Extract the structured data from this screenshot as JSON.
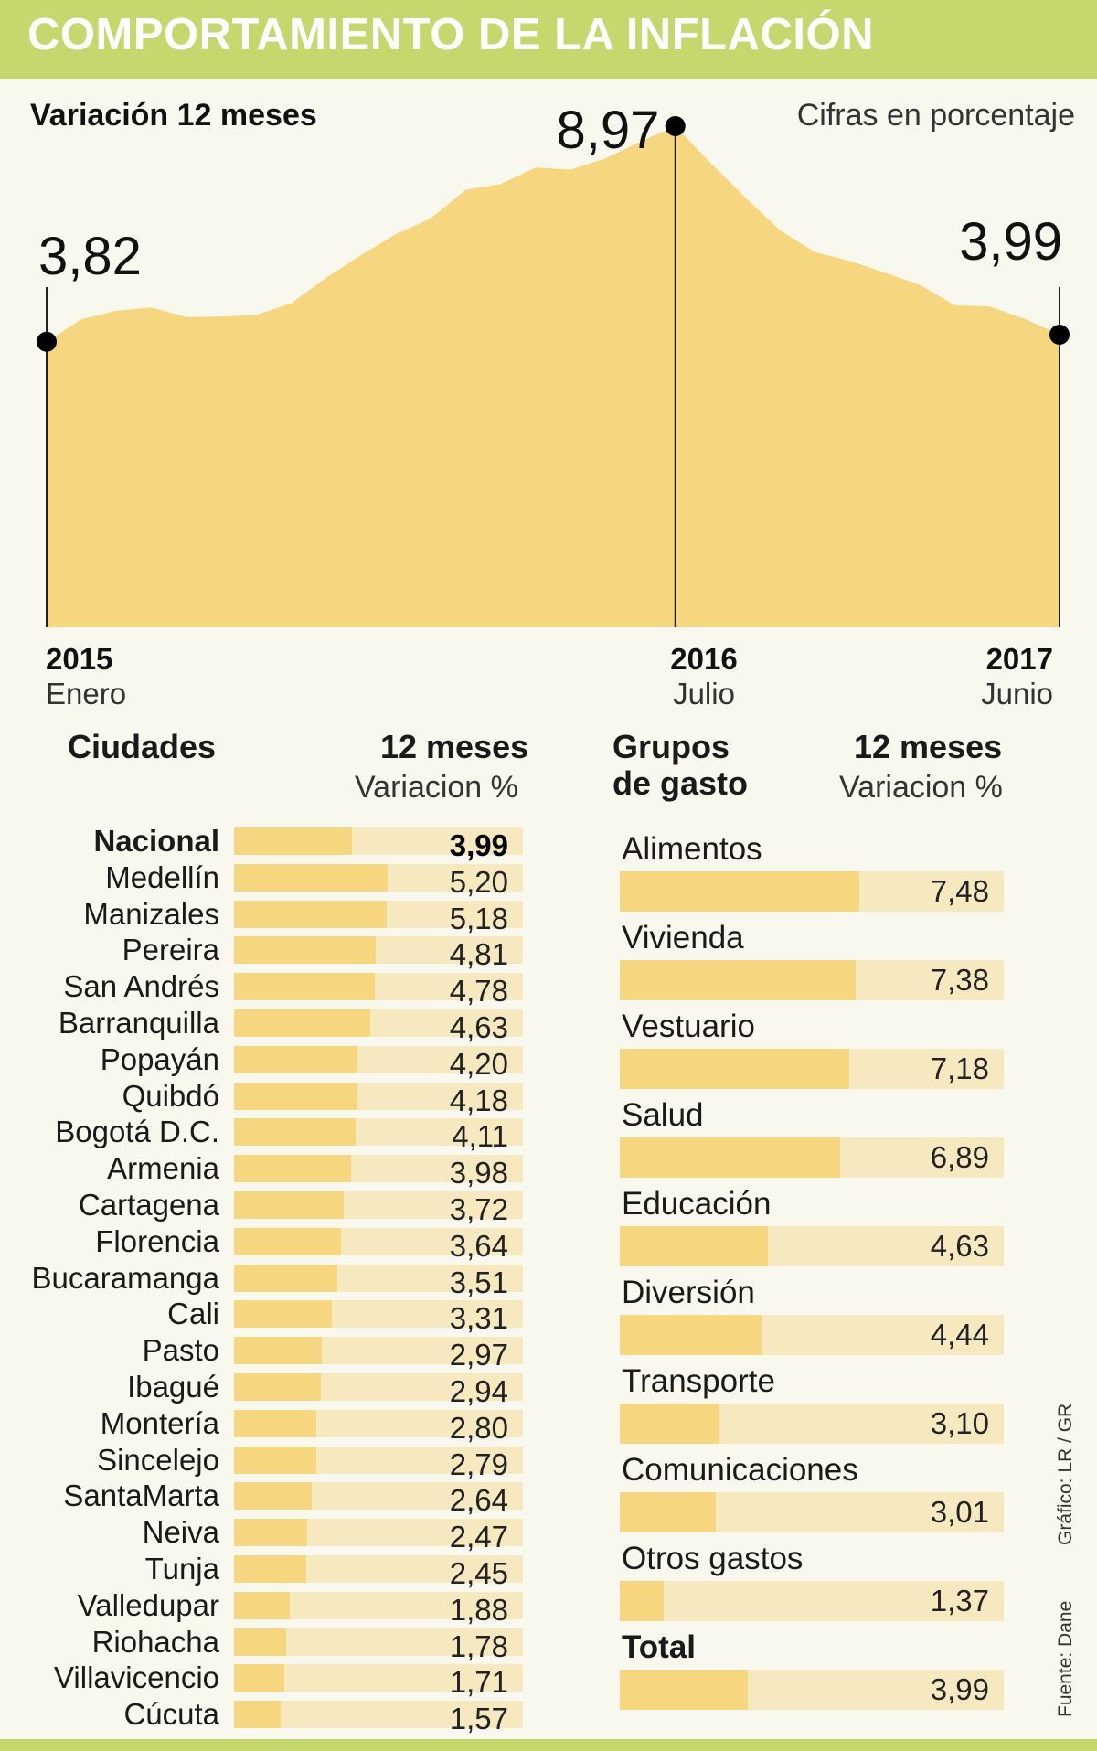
{
  "title": "COMPORTAMIENTO DE LA INFLACIÓN",
  "chart_data": [
    {
      "type": "area",
      "title": "Variación 12 meses",
      "subtitle": "Cifras en porcentaje",
      "color": "#f6d67e",
      "x": [
        "2015-01",
        "2015-02",
        "2015-03",
        "2015-04",
        "2015-05",
        "2015-06",
        "2015-07",
        "2015-08",
        "2015-09",
        "2015-10",
        "2015-11",
        "2015-12",
        "2016-01",
        "2016-02",
        "2016-03",
        "2016-04",
        "2016-05",
        "2016-06",
        "2016-07",
        "2016-08",
        "2016-09",
        "2016-10",
        "2016-11",
        "2016-12",
        "2017-01",
        "2017-02",
        "2017-03",
        "2017-04",
        "2017-05",
        "2017-06"
      ],
      "values": [
        3.82,
        4.36,
        4.56,
        4.64,
        4.41,
        4.42,
        4.46,
        4.74,
        5.35,
        5.89,
        6.39,
        6.77,
        7.45,
        7.59,
        7.98,
        7.93,
        8.2,
        8.6,
        8.97,
        8.1,
        7.27,
        6.48,
        5.96,
        5.75,
        5.47,
        5.18,
        4.69,
        4.66,
        4.37,
        3.99
      ],
      "ylim": [
        -3.0,
        9.8
      ],
      "callouts": {
        "start": {
          "value": "3,82",
          "year": "2015",
          "month": "Enero"
        },
        "peak": {
          "value": "8,97",
          "year": "2016",
          "month": "Julio"
        },
        "end": {
          "value": "3,99",
          "year": "2017",
          "month": "Junio"
        }
      }
    },
    {
      "type": "bar",
      "title": "Ciudades",
      "value_header": "12 meses",
      "value_subheader": "Variacion %",
      "categories": [
        "Nacional",
        "Medellín",
        "Manizales",
        "Pereira",
        "San Andrés",
        "Barranquilla",
        "Popayán",
        "Quibdó",
        "Bogotá D.C.",
        "Armenia",
        "Cartagena",
        "Florencia",
        "Bucaramanga",
        "Cali",
        "Pasto",
        "Ibagué",
        "Montería",
        "Sincelejo",
        "SantaMarta",
        "Neiva",
        "Tunja",
        "Valledupar",
        "Riohacha",
        "Villavicencio",
        "Cúcuta"
      ],
      "values": [
        3.99,
        5.2,
        5.18,
        4.81,
        4.78,
        4.63,
        4.2,
        4.18,
        4.11,
        3.98,
        3.72,
        3.64,
        3.51,
        3.31,
        2.97,
        2.94,
        2.8,
        2.79,
        2.64,
        2.47,
        2.45,
        1.88,
        1.78,
        1.71,
        1.57
      ],
      "labels": [
        "3,99",
        "5,20",
        "5,18",
        "4,81",
        "4,78",
        "4,63",
        "4,20",
        "4,18",
        "4,11",
        "3,98",
        "3,72",
        "3,64",
        "3,51",
        "3,31",
        "2,97",
        "2,94",
        "2,80",
        "2,79",
        "2,64",
        "2,47",
        "2,45",
        "1,88",
        "1,78",
        "1,71",
        "1,57"
      ],
      "xlim": [
        0,
        9.8
      ]
    },
    {
      "type": "bar",
      "title_line1": "Grupos",
      "title_line2": "de gasto",
      "value_header": "12 meses",
      "value_subheader": "Variacion %",
      "categories": [
        "Alimentos",
        "Vivienda",
        "Vestuario",
        "Salud",
        "Educación",
        "Diversión",
        "Transporte",
        "Comunicaciones",
        "Otros gastos",
        "Total"
      ],
      "values": [
        7.48,
        7.38,
        7.18,
        6.89,
        4.63,
        4.44,
        3.1,
        3.01,
        1.37,
        3.99
      ],
      "labels": [
        "7,48",
        "7,38",
        "7,18",
        "6,89",
        "4,63",
        "4,44",
        "3,10",
        "3,01",
        "1,37",
        "3,99"
      ],
      "xlim": [
        0,
        12.0
      ]
    }
  ],
  "credits": {
    "grafico": "Gráfico: LR / GR",
    "fuente": "Fuente: Dane"
  }
}
